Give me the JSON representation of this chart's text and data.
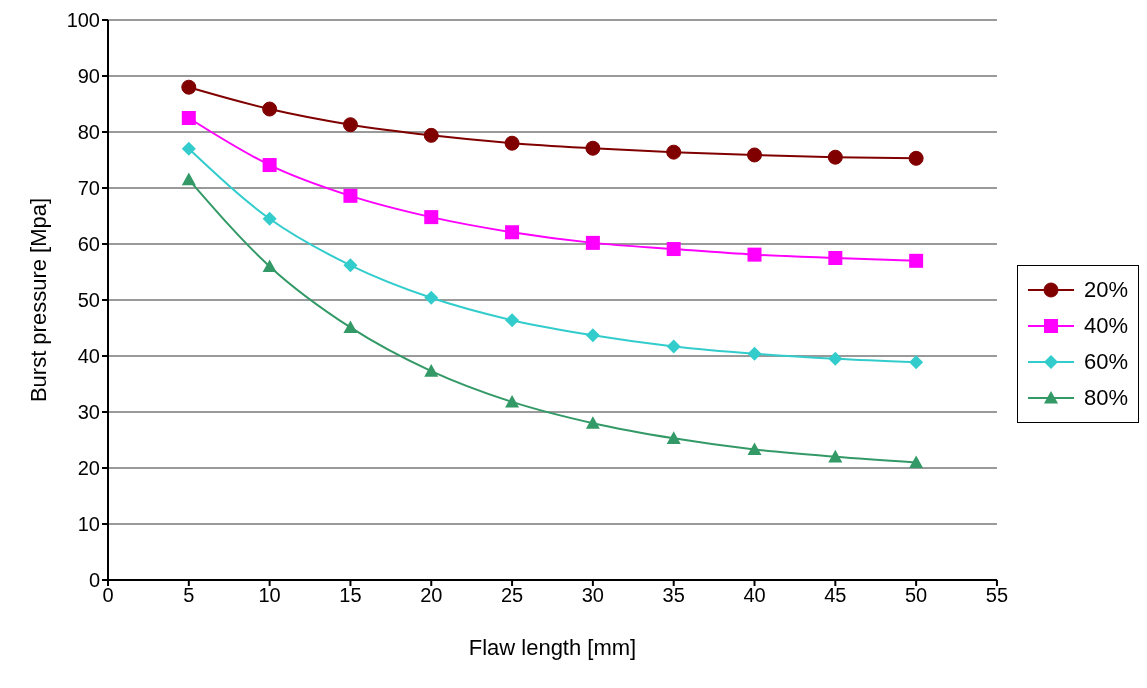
{
  "chart_data": {
    "type": "line",
    "xlabel": "Flaw length [mm]",
    "ylabel": "Burst pressure [Mpa]",
    "x": [
      5,
      10,
      15,
      20,
      25,
      30,
      35,
      40,
      45,
      50
    ],
    "series": [
      {
        "name": "20%",
        "color": "#800000",
        "marker": "circle",
        "values": [
          88.0,
          84.1,
          81.3,
          79.4,
          78.0,
          77.1,
          76.4,
          75.9,
          75.5,
          75.3
        ]
      },
      {
        "name": "40%",
        "color": "#ff00ff",
        "marker": "square",
        "values": [
          82.5,
          74.1,
          68.6,
          64.8,
          62.1,
          60.2,
          59.1,
          58.1,
          57.5,
          57.0
        ]
      },
      {
        "name": "60%",
        "color": "#33cccc",
        "marker": "diamond",
        "values": [
          77.0,
          64.5,
          56.2,
          50.4,
          46.4,
          43.7,
          41.7,
          40.4,
          39.5,
          38.9
        ]
      },
      {
        "name": "80%",
        "color": "#339966",
        "marker": "triangle",
        "values": [
          71.5,
          56.0,
          45.1,
          37.3,
          31.8,
          28.0,
          25.3,
          23.3,
          22.0,
          21.0
        ]
      }
    ],
    "xlim": [
      0,
      55
    ],
    "xticks": [
      0,
      5,
      10,
      15,
      20,
      25,
      30,
      35,
      40,
      45,
      50,
      55
    ],
    "ylim": [
      0,
      100
    ],
    "yticks": [
      0,
      10,
      20,
      30,
      40,
      50,
      60,
      70,
      80,
      90,
      100
    ],
    "grid": "y",
    "legend": "right"
  }
}
